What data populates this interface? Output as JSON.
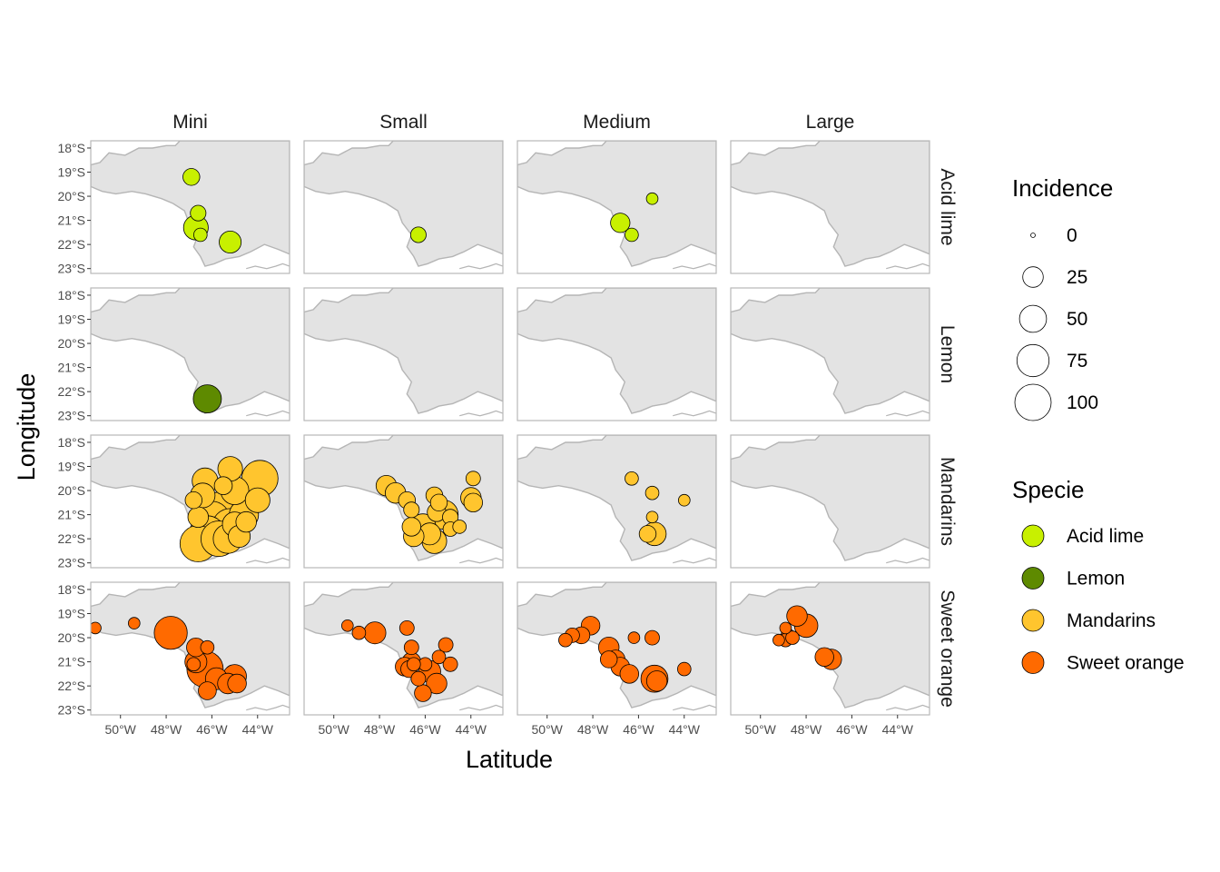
{
  "chart_data": {
    "type": "scatter",
    "subtype": "faceted-bubble-map",
    "xlabel": "Latitude",
    "ylabel": "Longitude",
    "x_ticks": [
      "50°W",
      "48°W",
      "46°W",
      "44°W"
    ],
    "x_tick_values": [
      -50,
      -48,
      -46,
      -44
    ],
    "y_ticks": [
      "18°S",
      "19°S",
      "20°S",
      "21°S",
      "22°S",
      "23°S"
    ],
    "y_tick_values": [
      -18,
      -19,
      -20,
      -21,
      -22,
      -23
    ],
    "xlim": [
      -51.3,
      -42.6
    ],
    "ylim": [
      -23.2,
      -17.7
    ],
    "grid": false,
    "columns": [
      "Mini",
      "Small",
      "Medium",
      "Large"
    ],
    "rows": [
      "Acid lime",
      "Lemon",
      "Mandarins",
      "Sweet orange"
    ],
    "size_legend": {
      "title": "Incidence",
      "values": [
        0,
        25,
        50,
        75,
        100
      ],
      "labels": [
        "0",
        "25",
        "50",
        "75",
        "100"
      ]
    },
    "color_legend": {
      "title": "Specie",
      "items": [
        {
          "label": "Acid lime",
          "color": "#C8F000"
        },
        {
          "label": "Lemon",
          "color": "#5E8A00"
        },
        {
          "label": "Mandarins",
          "color": "#FFC52E"
        },
        {
          "label": "Sweet orange",
          "color": "#FF6A00"
        }
      ]
    },
    "colors": {
      "panel_bg": "#E3E3E3",
      "panel_border": "#B8B8B8",
      "point_outline": "#000000"
    },
    "points": {
      "Acid lime": {
        "Mini": [
          [
            -46.9,
            -19.2,
            15
          ],
          [
            -46.6,
            -20.7,
            12
          ],
          [
            -46.7,
            -21.3,
            40
          ],
          [
            -46.5,
            -21.6,
            8
          ],
          [
            -45.2,
            -21.9,
            30
          ]
        ],
        "Small": [
          [
            -46.3,
            -21.6,
            12
          ]
        ],
        "Medium": [
          [
            -45.4,
            -20.1,
            5
          ],
          [
            -46.8,
            -21.1,
            22
          ],
          [
            -46.3,
            -21.6,
            8
          ]
        ],
        "Large": []
      },
      "Lemon": {
        "Mini": [
          [
            -46.2,
            -22.3,
            55
          ]
        ],
        "Small": [],
        "Medium": [],
        "Large": []
      },
      "Mandarins": {
        "Mini": [
          [
            -45.2,
            -19.1,
            40
          ],
          [
            -46.3,
            -19.6,
            45
          ],
          [
            -43.9,
            -19.5,
            100
          ],
          [
            -44.0,
            -20.4,
            40
          ],
          [
            -45.5,
            -19.8,
            18
          ],
          [
            -46.8,
            -20.4,
            15
          ],
          [
            -46.4,
            -20.2,
            40
          ],
          [
            -45.0,
            -20.0,
            55
          ],
          [
            -45.6,
            -20.8,
            100
          ],
          [
            -44.6,
            -21.0,
            60
          ],
          [
            -46.0,
            -21.2,
            100
          ],
          [
            -46.6,
            -21.1,
            25
          ],
          [
            -45.2,
            -21.5,
            100
          ],
          [
            -46.2,
            -21.8,
            100
          ],
          [
            -45.7,
            -22.0,
            95
          ],
          [
            -46.6,
            -22.2,
            100
          ],
          [
            -45.3,
            -22.0,
            60
          ],
          [
            -44.8,
            -21.9,
            30
          ],
          [
            -45.0,
            -21.4,
            40
          ],
          [
            -44.5,
            -21.3,
            25
          ]
        ],
        "Small": [
          [
            -47.7,
            -19.8,
            25
          ],
          [
            -47.3,
            -20.1,
            25
          ],
          [
            -46.8,
            -20.4,
            15
          ],
          [
            -46.6,
            -20.8,
            12
          ],
          [
            -45.6,
            -20.2,
            15
          ],
          [
            -45.4,
            -20.5,
            15
          ],
          [
            -45.5,
            -20.9,
            20
          ],
          [
            -45.2,
            -21.0,
            60
          ],
          [
            -46.1,
            -21.5,
            45
          ],
          [
            -46.6,
            -21.5,
            20
          ],
          [
            -45.8,
            -21.8,
            30
          ],
          [
            -46.5,
            -21.9,
            25
          ],
          [
            -45.6,
            -22.1,
            40
          ],
          [
            -44.9,
            -21.6,
            10
          ],
          [
            -44.9,
            -21.1,
            12
          ],
          [
            -44.5,
            -21.5,
            8
          ],
          [
            -43.9,
            -19.5,
            10
          ],
          [
            -44.0,
            -20.3,
            25
          ],
          [
            -43.9,
            -20.5,
            20
          ]
        ],
        "Medium": [
          [
            -46.3,
            -19.5,
            8
          ],
          [
            -45.4,
            -20.1,
            8
          ],
          [
            -45.4,
            -21.1,
            5
          ],
          [
            -44.0,
            -20.4,
            5
          ],
          [
            -45.3,
            -21.8,
            35
          ],
          [
            -45.6,
            -21.8,
            15
          ]
        ],
        "Large": []
      },
      "Sweet orange": {
        "Mini": [
          [
            -51.1,
            -19.6,
            5
          ],
          [
            -49.4,
            -19.4,
            5
          ],
          [
            -47.8,
            -19.8,
            80
          ],
          [
            -46.7,
            -20.4,
            20
          ],
          [
            -46.7,
            -21.0,
            30
          ],
          [
            -46.3,
            -21.3,
            100
          ],
          [
            -45.8,
            -21.7,
            30
          ],
          [
            -45.0,
            -21.6,
            35
          ],
          [
            -45.3,
            -21.9,
            25
          ],
          [
            -44.9,
            -21.9,
            20
          ],
          [
            -46.2,
            -22.2,
            18
          ],
          [
            -46.2,
            -20.4,
            8
          ],
          [
            -46.8,
            -21.1,
            8
          ]
        ],
        "Small": [
          [
            -49.4,
            -19.5,
            5
          ],
          [
            -48.9,
            -19.8,
            8
          ],
          [
            -48.2,
            -19.8,
            30
          ],
          [
            -46.8,
            -19.6,
            10
          ],
          [
            -46.6,
            -20.4,
            10
          ],
          [
            -46.6,
            -21.0,
            20
          ],
          [
            -46.9,
            -21.2,
            20
          ],
          [
            -46.7,
            -21.3,
            15
          ],
          [
            -46.3,
            -21.7,
            10
          ],
          [
            -45.8,
            -21.4,
            30
          ],
          [
            -45.5,
            -21.9,
            25
          ],
          [
            -45.4,
            -20.8,
            8
          ],
          [
            -45.1,
            -20.3,
            10
          ],
          [
            -44.9,
            -21.1,
            10
          ],
          [
            -46.0,
            -21.1,
            8
          ],
          [
            -46.1,
            -22.3,
            15
          ],
          [
            -46.5,
            -21.1,
            8
          ]
        ],
        "Medium": [
          [
            -49.2,
            -20.1,
            8
          ],
          [
            -48.9,
            -19.9,
            10
          ],
          [
            -48.5,
            -19.9,
            15
          ],
          [
            -48.1,
            -19.5,
            20
          ],
          [
            -47.3,
            -20.4,
            25
          ],
          [
            -47.3,
            -20.9,
            15
          ],
          [
            -47.0,
            -20.9,
            20
          ],
          [
            -46.8,
            -21.2,
            20
          ],
          [
            -46.4,
            -21.5,
            20
          ],
          [
            -46.2,
            -20.0,
            5
          ],
          [
            -45.4,
            -20.0,
            10
          ],
          [
            -45.3,
            -21.7,
            50
          ],
          [
            -45.2,
            -21.8,
            25
          ],
          [
            -44.0,
            -21.3,
            8
          ]
        ],
        "Large": [
          [
            -48.9,
            -19.6,
            5
          ],
          [
            -48.8,
            -19.9,
            8
          ],
          [
            -48.9,
            -20.1,
            8
          ],
          [
            -49.2,
            -20.1,
            5
          ],
          [
            -48.6,
            -20.0,
            8
          ],
          [
            -48.4,
            -19.1,
            25
          ],
          [
            -48.0,
            -19.5,
            35
          ],
          [
            -47.2,
            -20.8,
            20
          ],
          [
            -46.9,
            -20.9,
            25
          ]
        ]
      }
    }
  }
}
